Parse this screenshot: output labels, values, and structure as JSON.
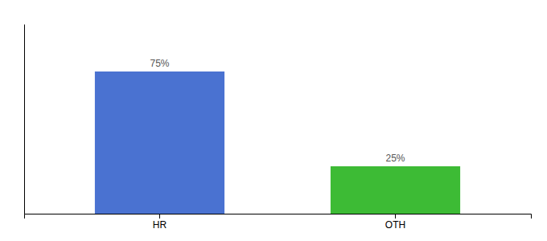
{
  "chart_data": {
    "type": "bar",
    "categories": [
      "HR",
      "OTH"
    ],
    "values": [
      75,
      25
    ],
    "value_labels": [
      "75%",
      "25%"
    ],
    "colors": [
      "#4a72d1",
      "#3dbb35"
    ],
    "ylim": [
      0,
      100
    ],
    "yticks": [],
    "grid": false,
    "tick_labels": "x"
  }
}
